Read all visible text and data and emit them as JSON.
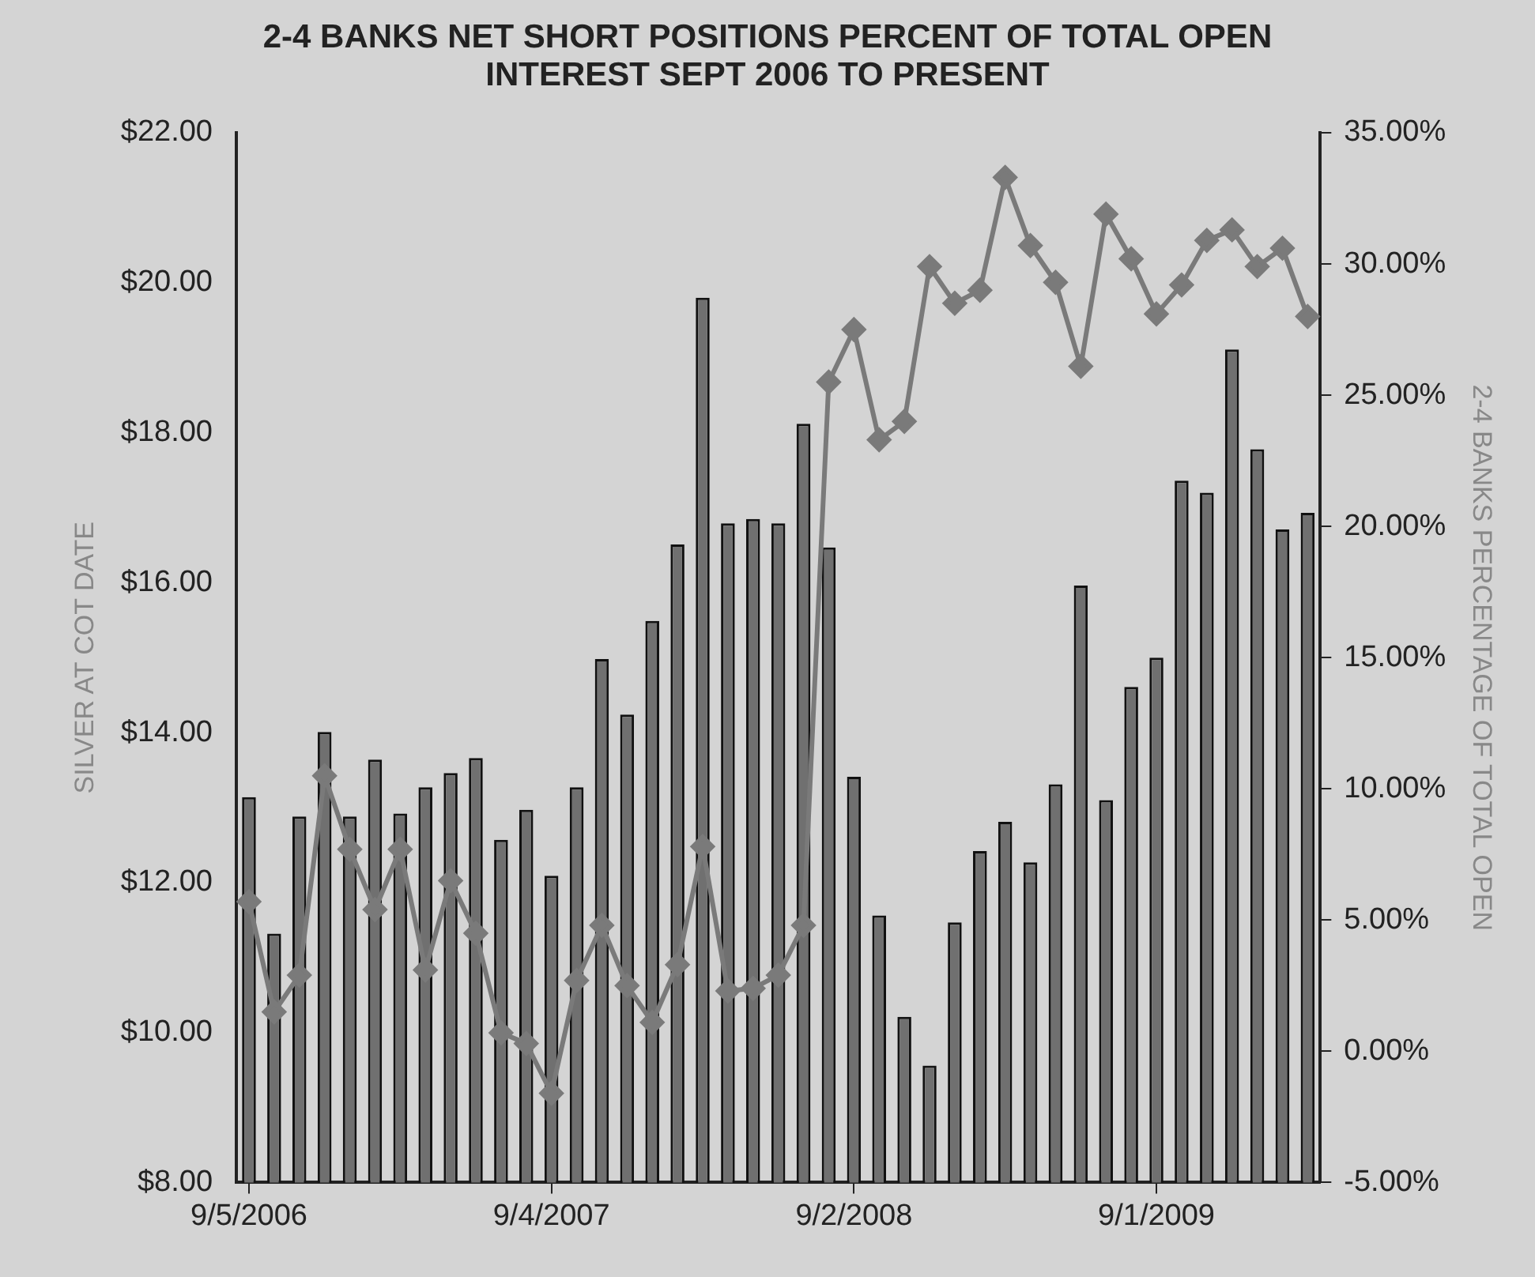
{
  "chart_data": {
    "type": "bar",
    "title": "2-4 BANKS NET SHORT POSITIONS PERCENT OF TOTAL OPEN INTEREST SEPT 2006 TO PRESENT",
    "ylabel": "SILVER AT COT DATE",
    "y2label": "2-4 BANKS PERCENTAGE OF TOTAL OPEN",
    "categories": [
      "9/5/2006",
      null,
      null,
      null,
      null,
      null,
      null,
      null,
      null,
      null,
      null,
      null,
      "9/4/2007",
      null,
      null,
      null,
      null,
      null,
      null,
      null,
      null,
      null,
      null,
      null,
      "9/2/2008",
      null,
      null,
      null,
      null,
      null,
      null,
      null,
      null,
      null,
      null,
      null,
      "9/1/2009",
      null,
      null,
      null,
      null,
      null,
      null
    ],
    "series": [
      {
        "color": "#707070",
        "values": [
          13.14,
          11.32,
          12.88,
          14.01,
          12.88,
          13.64,
          12.92,
          13.27,
          13.46,
          13.66,
          12.57,
          12.97,
          12.09,
          13.27,
          14.98,
          14.24,
          15.49,
          16.51,
          19.8,
          16.79,
          16.85,
          16.79,
          18.12,
          16.47,
          13.41,
          11.56,
          10.21,
          9.56,
          11.47,
          12.42,
          12.81,
          12.27,
          13.31,
          15.96,
          13.1,
          14.61,
          15.0,
          17.36,
          17.2,
          19.11,
          17.78,
          16.71,
          16.93
        ]
      },
      {
        "type": "line",
        "axis": "y2",
        "color": "#7a7a7a",
        "marker": "diamond",
        "values": [
          5.7,
          1.5,
          2.9,
          10.5,
          7.7,
          5.4,
          7.7,
          3.1,
          6.5,
          4.5,
          0.7,
          0.3,
          -1.6,
          2.7,
          4.8,
          2.5,
          1.1,
          3.3,
          7.8,
          2.3,
          2.4,
          2.9,
          4.8,
          25.5,
          27.5,
          23.3,
          24.0,
          29.9,
          28.5,
          29.0,
          33.3,
          30.7,
          29.3,
          26.1,
          31.9,
          30.2,
          28.1,
          29.2,
          30.9,
          31.3,
          29.9,
          30.6,
          28.0
        ]
      }
    ],
    "ylim": [
      8,
      22
    ],
    "yticks": [
      {
        "value": 8,
        "label": "$8.00"
      },
      {
        "value": 10,
        "label": "$10.00"
      },
      {
        "value": 12,
        "label": "$12.00"
      },
      {
        "value": 14,
        "label": "$14.00"
      },
      {
        "value": 16,
        "label": "$16.00"
      },
      {
        "value": 18,
        "label": "$18.00"
      },
      {
        "value": 20,
        "label": "$20.00"
      },
      {
        "value": 22,
        "label": "$22.00"
      }
    ],
    "y2lim": [
      -5,
      35
    ],
    "y2ticks": [
      {
        "value": -5,
        "label": "-5.00%"
      },
      {
        "value": 0,
        "label": "0.00%"
      },
      {
        "value": 5,
        "label": "5.00%"
      },
      {
        "value": 10,
        "label": "10.00%"
      },
      {
        "value": 15,
        "label": "15.00%"
      },
      {
        "value": 20,
        "label": "20.00%"
      },
      {
        "value": 25,
        "label": "25.00%"
      },
      {
        "value": 30,
        "label": "30.00%"
      },
      {
        "value": 35,
        "label": "35.00%"
      }
    ],
    "grid": false,
    "legend": false
  }
}
